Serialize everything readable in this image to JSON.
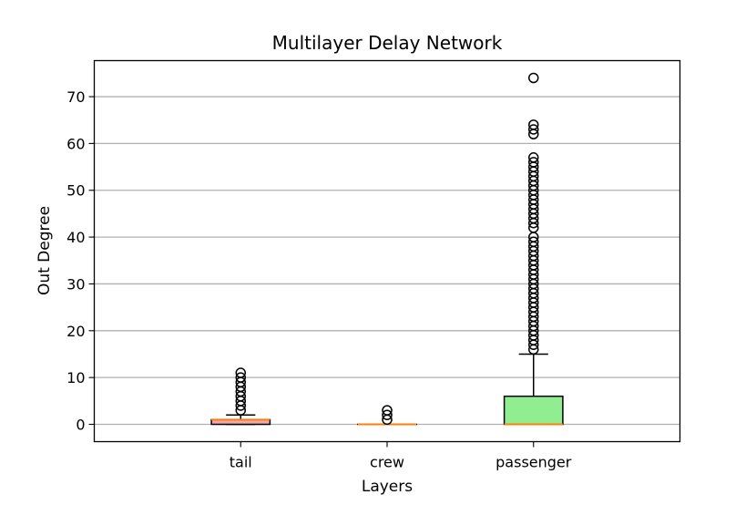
{
  "chart_data": {
    "type": "box",
    "title": "Multilayer Delay Network",
    "xlabel": "Layers",
    "ylabel": "Out Degree",
    "ylim": [
      -3.7,
      77.7
    ],
    "yticks": [
      0,
      10,
      20,
      30,
      40,
      50,
      60,
      70
    ],
    "ytick_labels": [
      "0",
      "10",
      "20",
      "30",
      "40",
      "50",
      "60",
      "70"
    ],
    "grid": "horizontal",
    "legend": "none",
    "categories": [
      "tail",
      "crew",
      "passenger"
    ],
    "boxes": [
      {
        "name": "tail",
        "color": "#F4A9A9",
        "q1": 0,
        "median": 1,
        "q3": 1,
        "whisker_low": 0,
        "whisker_high": 2,
        "outliers": [
          3,
          4,
          5,
          6,
          7,
          8,
          9,
          10,
          11
        ]
      },
      {
        "name": "crew",
        "color": "#A9C4F4",
        "q1": 0,
        "median": 0,
        "q3": 0,
        "whisker_low": 0,
        "whisker_high": 0,
        "outliers": [
          1,
          2,
          3
        ]
      },
      {
        "name": "passenger",
        "color": "#90EE90",
        "q1": 0,
        "median": 0,
        "q3": 6,
        "whisker_low": 0,
        "whisker_high": 15,
        "outliers": [
          16,
          17,
          18,
          19,
          20,
          21,
          22,
          23,
          24,
          25,
          26,
          27,
          28,
          29,
          30,
          31,
          32,
          33,
          34,
          35,
          36,
          37,
          38,
          39,
          40,
          42,
          43,
          44,
          45,
          46,
          47,
          48,
          49,
          50,
          51,
          52,
          53,
          54,
          55,
          56,
          57,
          62,
          63,
          64,
          74
        ]
      }
    ],
    "median_color": "#FF7F0E"
  }
}
